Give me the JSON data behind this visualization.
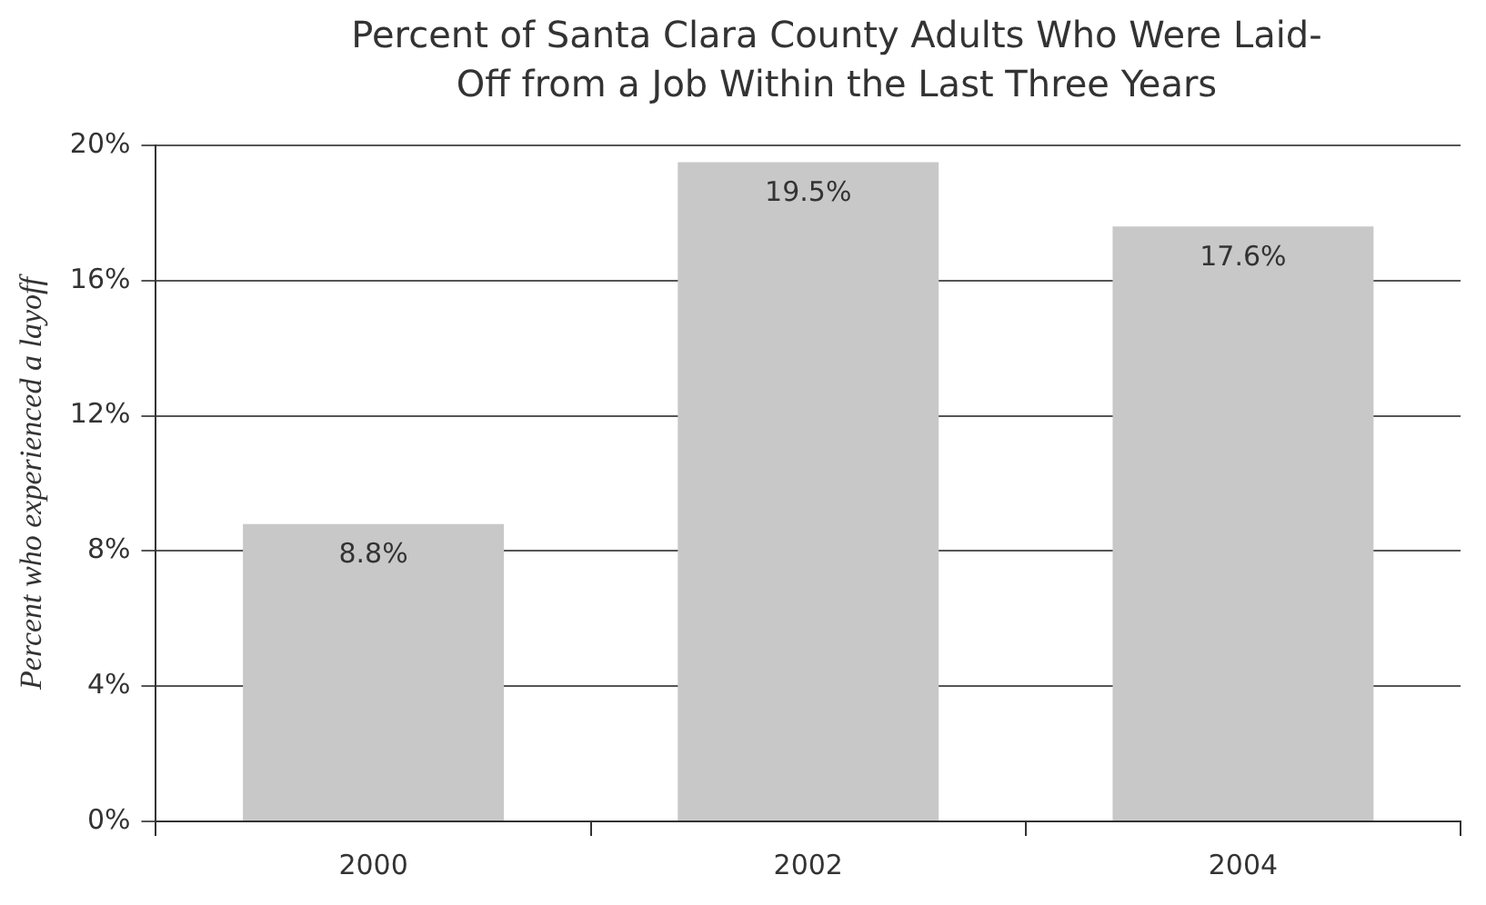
{
  "chart_data": {
    "type": "bar",
    "title": "Percent of Santa Clara County Adults Who Were Laid-Off from a Job Within the Last Three Years",
    "ylabel": "Percent who experienced a layoff",
    "categories": [
      "2000",
      "2002",
      "2004"
    ],
    "values": [
      8.8,
      19.5,
      17.6
    ],
    "value_labels": [
      "8.8%",
      "19.5%",
      "17.6%"
    ],
    "color": "#c8c8c8",
    "ylim": [
      0,
      20
    ],
    "yticks": [
      {
        "value": 0,
        "label": "0%"
      },
      {
        "value": 4,
        "label": "4%"
      },
      {
        "value": 8,
        "label": "8%"
      },
      {
        "value": 12,
        "label": "12%"
      },
      {
        "value": 16,
        "label": "16%"
      },
      {
        "value": 20,
        "label": "20%"
      }
    ],
    "grid": "y",
    "legend": false
  }
}
